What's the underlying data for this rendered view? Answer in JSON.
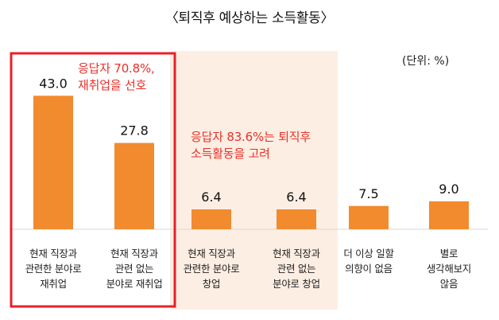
{
  "chart_data": {
    "type": "bar",
    "title": "〈퇴직후 예상하는 소득활동〉",
    "unit": "(단위: %)",
    "categories": [
      [
        "현재 직장과",
        "관련한 분야로",
        "재취업"
      ],
      [
        "현재 직장과",
        "관련 없는",
        "분야로 재취업"
      ],
      [
        "현재 직장과",
        "관련한 분야로",
        "창업"
      ],
      [
        "현재 직장과",
        "관련 없는",
        "분야로 창업"
      ],
      [
        "더 이상 일할",
        "의향이 없음"
      ],
      [
        "별로",
        "생각해보지",
        "않음"
      ]
    ],
    "values": [
      43.0,
      27.8,
      6.4,
      6.4,
      7.5,
      9.0
    ],
    "value_labels": [
      "43.0",
      "27.8",
      "6.4",
      "6.4",
      "7.5",
      "9.0"
    ],
    "ylim": [
      0,
      50
    ],
    "grid": false,
    "bar_color": "#f28a2e",
    "annotations": [
      {
        "lines": [
          "응답자 70.8%,",
          "재취업을 선호"
        ],
        "color": "#e8302a",
        "group": "reemployment",
        "group_indices": [
          0,
          1
        ],
        "group_style": "outline",
        "group_color": "#e8202a"
      },
      {
        "lines": [
          "응답자 83.6%는 퇴직후",
          "소득활동을 고려"
        ],
        "color": "#e8302a",
        "group": "income-activity",
        "group_indices": [
          2,
          3
        ],
        "group_style": "fill",
        "group_color": "#fdeee3"
      }
    ]
  }
}
